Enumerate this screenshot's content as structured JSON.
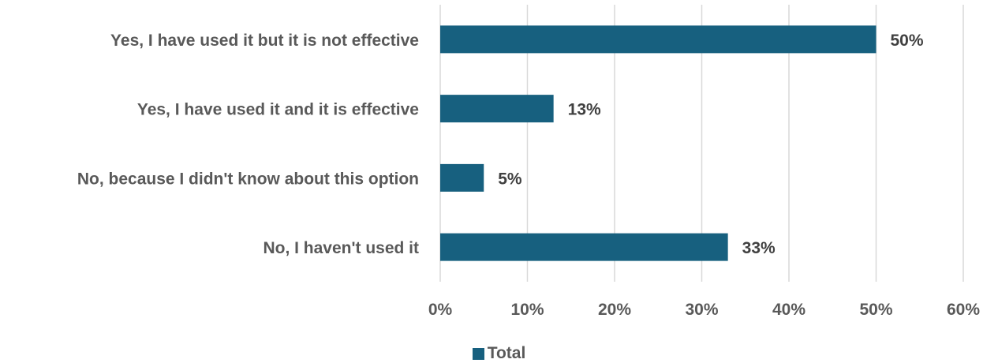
{
  "chart_data": {
    "type": "bar",
    "orientation": "horizontal",
    "categories": [
      "Yes, I have used it but it is not effective",
      "Yes, I have used it and it is effective",
      "No, because I didn't know about this option",
      "No, I haven't used it"
    ],
    "series": [
      {
        "name": "Total",
        "values": [
          50,
          13,
          5,
          33
        ],
        "labels": [
          "50%",
          "13%",
          "5%",
          "33%"
        ],
        "color": "#17607f"
      }
    ],
    "xlim": [
      0,
      60
    ],
    "xticks": [
      0,
      10,
      20,
      30,
      40,
      50,
      60
    ],
    "xtick_labels": [
      "0%",
      "10%",
      "20%",
      "30%",
      "40%",
      "50%",
      "60%"
    ],
    "grid": true,
    "legend_position": "bottom"
  },
  "legend": {
    "label": "Total"
  }
}
